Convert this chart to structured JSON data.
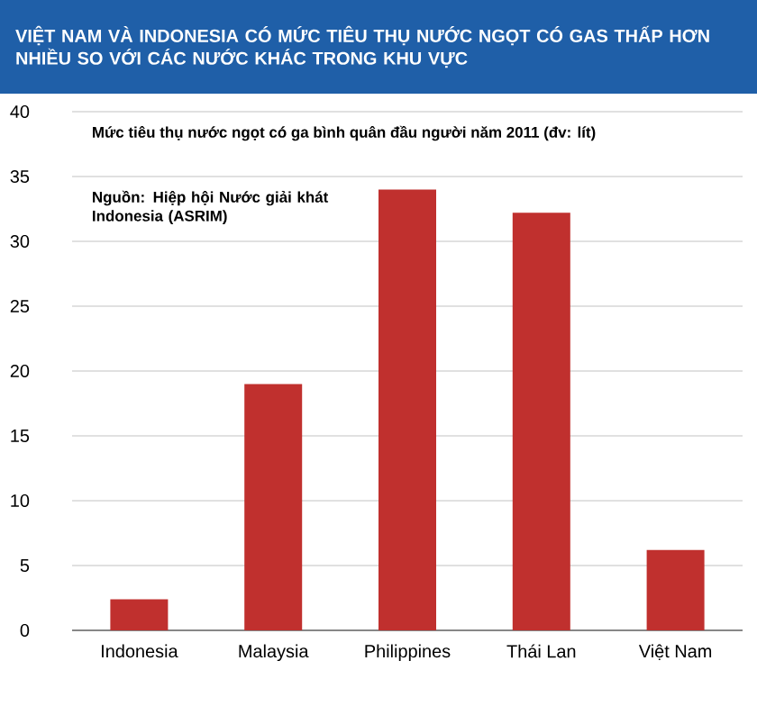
{
  "chart_data": {
    "type": "bar",
    "title": "VIỆT NAM VÀ INDONESIA CÓ MỨC TIÊU THỤ NƯỚC NGỌT CÓ GAS THẤP HƠN NHIỀU SO VỚI CÁC NƯỚC KHÁC TRONG KHU VỰC",
    "subtitle": "Mức tiêu thụ nước ngọt có ga bình quân đầu người năm 2011 (đv: lít)",
    "annotations": [
      "Nguồn: Hiệp hội Nước giải khát Indonesia (ASRIM)"
    ],
    "categories": [
      "Indonesia",
      "Malaysia",
      "Philippines",
      "Thái Lan",
      "Việt Nam"
    ],
    "values": [
      2.4,
      19,
      34,
      32.2,
      6.2
    ],
    "color": "#c0302e",
    "ylim": [
      0,
      40
    ],
    "yticks": [
      0,
      5,
      10,
      15,
      20,
      25,
      30,
      35,
      40
    ],
    "grid": "y"
  }
}
